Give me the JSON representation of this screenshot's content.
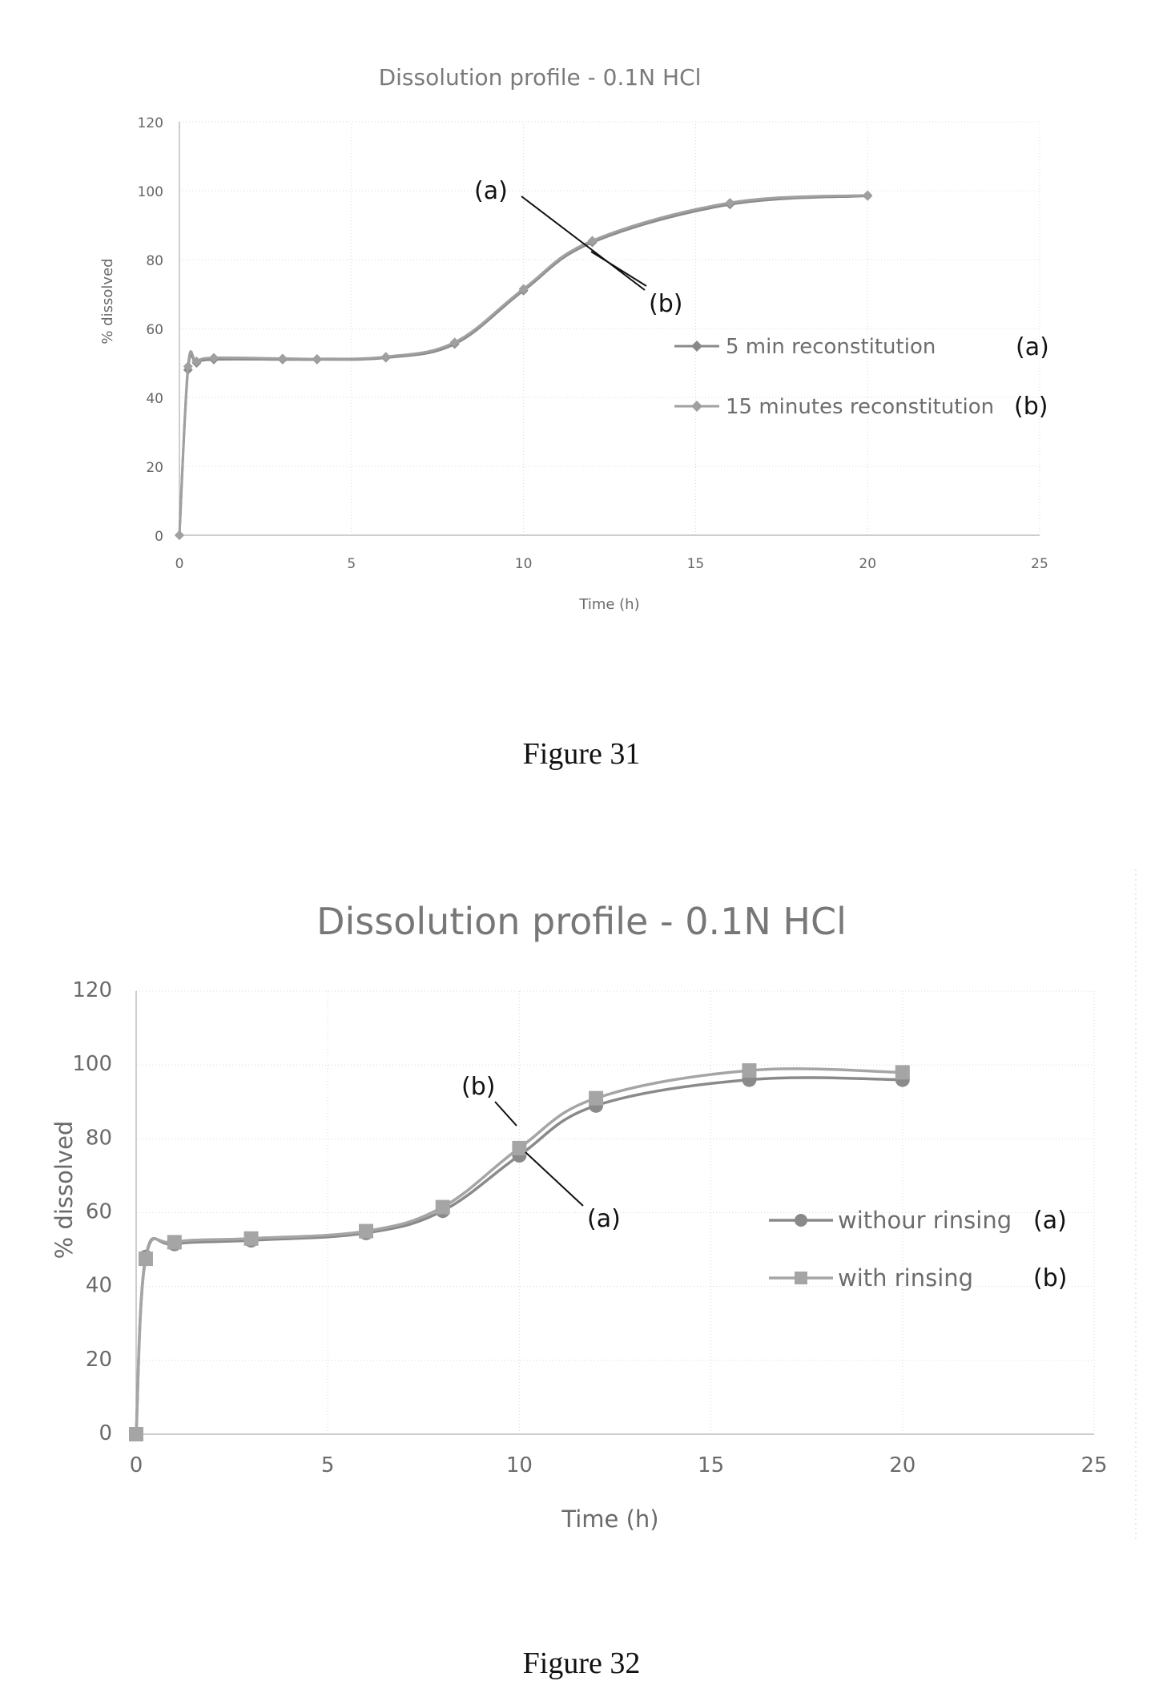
{
  "chart_data": [
    {
      "type": "line",
      "title": "Dissolution profile - 0.1N HCl",
      "xlabel": "Time (h)",
      "ylabel": "% dissolved",
      "xlim": [
        0,
        25
      ],
      "ylim": [
        0,
        120
      ],
      "xticks": [
        "0",
        "5",
        "10",
        "15",
        "20",
        "25"
      ],
      "yticks": [
        "0",
        "20",
        "40",
        "60",
        "80",
        "100",
        "120"
      ],
      "grid": true,
      "legend_position": "right",
      "series": [
        {
          "name": "5 min reconstitution",
          "label": "(a)",
          "color": "#8a8a8a",
          "marker": "diamond",
          "x": [
            0,
            0.25,
            0.5,
            1,
            3,
            4,
            6,
            8,
            10,
            12,
            16,
            20
          ],
          "y": [
            0,
            48,
            50,
            51,
            51,
            51,
            51.5,
            55.5,
            71,
            85,
            96,
            98.5
          ]
        },
        {
          "name": "15 minutes reconstitution",
          "label": "(b)",
          "color": "#a0a0a0",
          "marker": "diamond",
          "x": [
            0,
            0.25,
            0.5,
            1,
            3,
            4,
            6,
            8,
            10,
            12,
            16,
            20
          ],
          "y": [
            0,
            49,
            50.5,
            51.5,
            51.3,
            51.2,
            51.8,
            56,
            71.5,
            85.5,
            96.5,
            98.7
          ]
        }
      ],
      "annotations": [
        {
          "text": "(a)"
        },
        {
          "text": "(b)"
        }
      ]
    },
    {
      "type": "line",
      "title": "Dissolution profile - 0.1N HCl",
      "xlabel": "Time (h)",
      "ylabel": "% dissolved",
      "xlim": [
        0,
        25
      ],
      "ylim": [
        0,
        120
      ],
      "xticks": [
        "0",
        "5",
        "10",
        "15",
        "20",
        "25"
      ],
      "yticks": [
        "0",
        "20",
        "40",
        "60",
        "80",
        "100",
        "120"
      ],
      "grid": true,
      "legend_position": "right",
      "series": [
        {
          "name": "withour rinsing",
          "label": "(a)",
          "color": "#8a8a8a",
          "marker": "circle",
          "x": [
            0,
            0.25,
            1,
            3,
            6,
            8,
            10,
            12,
            16,
            20
          ],
          "y": [
            0,
            48,
            51.5,
            52.5,
            54.5,
            60.5,
            75.5,
            89,
            96,
            96
          ]
        },
        {
          "name": "with rinsing",
          "label": "(b)",
          "color": "#a5a5a5",
          "marker": "square",
          "x": [
            0,
            0.25,
            1,
            3,
            6,
            8,
            10,
            12,
            16,
            20
          ],
          "y": [
            0,
            47.5,
            52,
            53,
            55,
            61.5,
            77.5,
            91,
            98.5,
            98
          ]
        }
      ],
      "annotations": [
        {
          "text": "(b)"
        },
        {
          "text": "(a)"
        }
      ]
    }
  ],
  "captions": {
    "fig31": "Figure 31",
    "fig32": "Figure 32"
  }
}
